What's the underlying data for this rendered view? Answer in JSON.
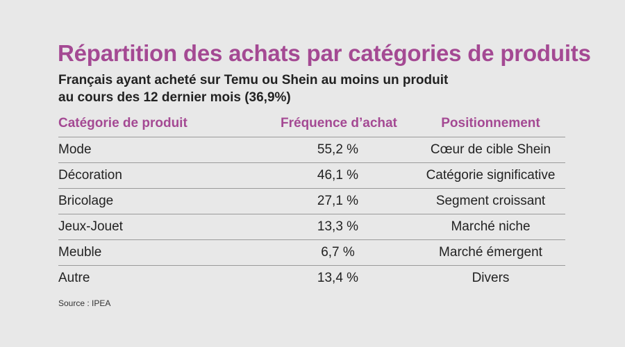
{
  "title": "Répartition des achats par catégories de produits",
  "subtitle_line1": "Français ayant acheté sur Temu ou Shein au moins un produit",
  "subtitle_line2": "au cours des 12 dernier mois (36,9%)",
  "source": "Source : IPEA",
  "colors": {
    "accent": "#a44993",
    "background": "#e8e8e8",
    "rule": "#9a9a9a"
  },
  "chart_data": {
    "type": "table",
    "title": "Répartition des achats par catégories de produits",
    "columns": [
      "Catégorie de produit",
      "Fréquence d’achat",
      "Positionnement"
    ],
    "rows": [
      {
        "category": "Mode",
        "frequency": "55,2 %",
        "position": "Cœur de cible Shein"
      },
      {
        "category": "Décoration",
        "frequency": "46,1 %",
        "position": "Catégorie significative"
      },
      {
        "category": "Bricolage",
        "frequency": "27,1 %",
        "position": "Segment croissant"
      },
      {
        "category": "Jeux-Jouet",
        "frequency": "13,3 %",
        "position": "Marché niche"
      },
      {
        "category": "Meuble",
        "frequency": "6,7 %",
        "position": "Marché émergent"
      },
      {
        "category": "Autre",
        "frequency": "13,4 %",
        "position": "Divers"
      }
    ]
  }
}
